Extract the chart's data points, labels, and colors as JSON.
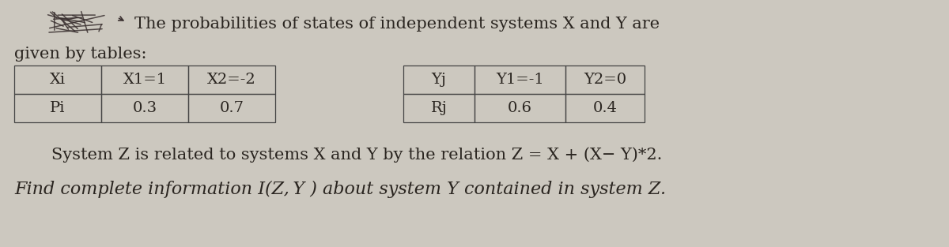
{
  "bg_color": "#ccc8bf",
  "text_color": "#2a2520",
  "title_line1": "The probabilities of states of independent systems X and Y are",
  "title_line2": "given by tables:",
  "table_x_headers": [
    "Xi",
    "X1=1",
    "X2=-2"
  ],
  "table_x_row": [
    "Pi",
    "0.3",
    "0.7"
  ],
  "table_y_headers": [
    "Yj",
    "Y1=-1",
    "Y2=0"
  ],
  "table_y_row": [
    "Rj",
    "0.6",
    "0.4"
  ],
  "line3": "System Z is related to systems X and Y by the relation Z = X + (X− Y)*2.",
  "line4": "Find complete information I(Z, Y ) about system Y contained in system Z.",
  "font_size_text": 15,
  "font_size_table": 14,
  "scribble_color": "#3a3030"
}
